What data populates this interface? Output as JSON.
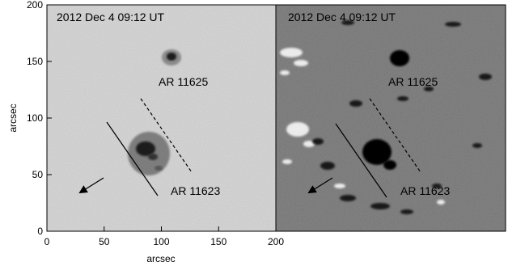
{
  "panels": [
    {
      "timestamp": "2012 Dec 4   09:12 UT",
      "region_labels": [
        "AR 11625",
        "AR 11623"
      ]
    },
    {
      "timestamp": "2012 Dec 4   09:12 UT",
      "region_labels": [
        "AR 11625",
        "AR 11623"
      ]
    }
  ],
  "axes": {
    "xlabel": "arcsec",
    "ylabel": "arcsec",
    "x_ticks": [
      "0",
      "50",
      "100",
      "150",
      "200"
    ],
    "y_ticks": [
      "0",
      "50",
      "100",
      "150",
      "200"
    ]
  },
  "colors": {
    "continuum_background": "#d8d8d8",
    "magnetogram_background": "#7c7c7c",
    "sunspot": "#1a1a1a",
    "positive_polarity": "#ffffff",
    "negative_polarity": "#000000"
  }
}
